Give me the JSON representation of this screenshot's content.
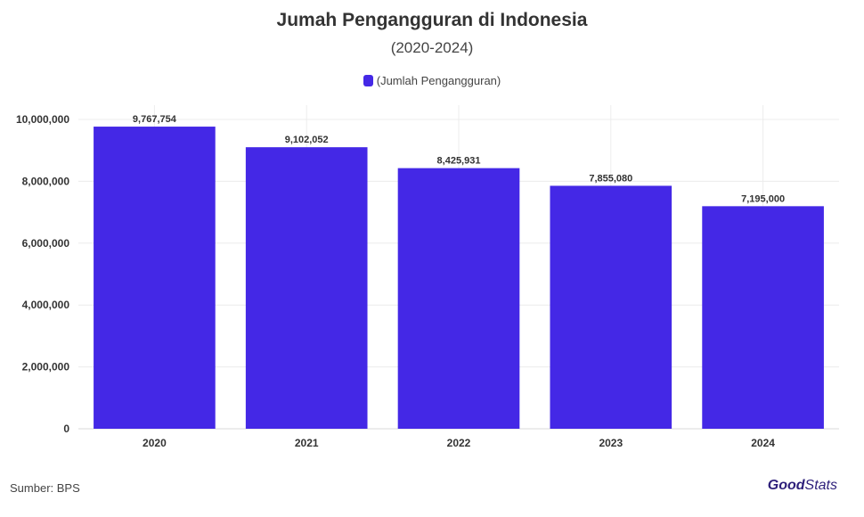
{
  "header": {
    "title": "Jumah Pengangguran di Indonesia",
    "subtitle": "(2020-2024)"
  },
  "legend": {
    "label": "(Jumlah Pengangguran)",
    "color": "#4428e6"
  },
  "footer": {
    "source": "Sumber: BPS",
    "brand_good": "Good",
    "brand_stats": "Stats"
  },
  "chart_data": {
    "type": "bar",
    "categories": [
      "2020",
      "2021",
      "2022",
      "2023",
      "2024"
    ],
    "series": [
      {
        "name": "(Jumlah Pengangguran)",
        "values": [
          9767754,
          9102052,
          8425931,
          7855080,
          7195000
        ],
        "color": "#4428e6"
      }
    ],
    "value_labels": [
      "9,767,754",
      "9,102,052",
      "8,425,931",
      "7,855,080",
      "7,195,000"
    ],
    "ylim": [
      0,
      10000000
    ],
    "yticks": [
      0,
      2000000,
      4000000,
      6000000,
      8000000,
      10000000
    ],
    "ytick_labels": [
      "0",
      "2,000,000",
      "4,000,000",
      "6,000,000",
      "8,000,000",
      "10,000,000"
    ],
    "grid": true,
    "legend_position": "top-center"
  }
}
